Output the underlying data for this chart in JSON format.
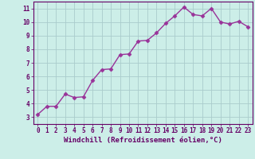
{
  "x": [
    0,
    1,
    2,
    3,
    4,
    5,
    6,
    7,
    8,
    9,
    10,
    11,
    12,
    13,
    14,
    15,
    16,
    17,
    18,
    19,
    20,
    21,
    22,
    23
  ],
  "y": [
    3.2,
    3.8,
    3.8,
    4.7,
    4.45,
    4.5,
    5.7,
    6.5,
    6.55,
    7.6,
    7.65,
    8.6,
    8.65,
    9.2,
    9.9,
    10.45,
    11.1,
    10.55,
    10.45,
    11.0,
    10.0,
    9.85,
    10.05,
    9.65
  ],
  "line_color": "#993399",
  "marker": "D",
  "marker_size": 2.5,
  "bg_color": "#cceee8",
  "grid_color": "#aacccc",
  "xlabel": "Windchill (Refroidissement éolien,°C)",
  "xlim": [
    -0.5,
    23.5
  ],
  "ylim": [
    2.5,
    11.5
  ],
  "yticks": [
    3,
    4,
    5,
    6,
    7,
    8,
    9,
    10,
    11
  ],
  "xticks": [
    0,
    1,
    2,
    3,
    4,
    5,
    6,
    7,
    8,
    9,
    10,
    11,
    12,
    13,
    14,
    15,
    16,
    17,
    18,
    19,
    20,
    21,
    22,
    23
  ],
  "tick_fontsize": 5.5,
  "xlabel_fontsize": 6.5,
  "spine_color": "#660066",
  "line_width": 1.0
}
